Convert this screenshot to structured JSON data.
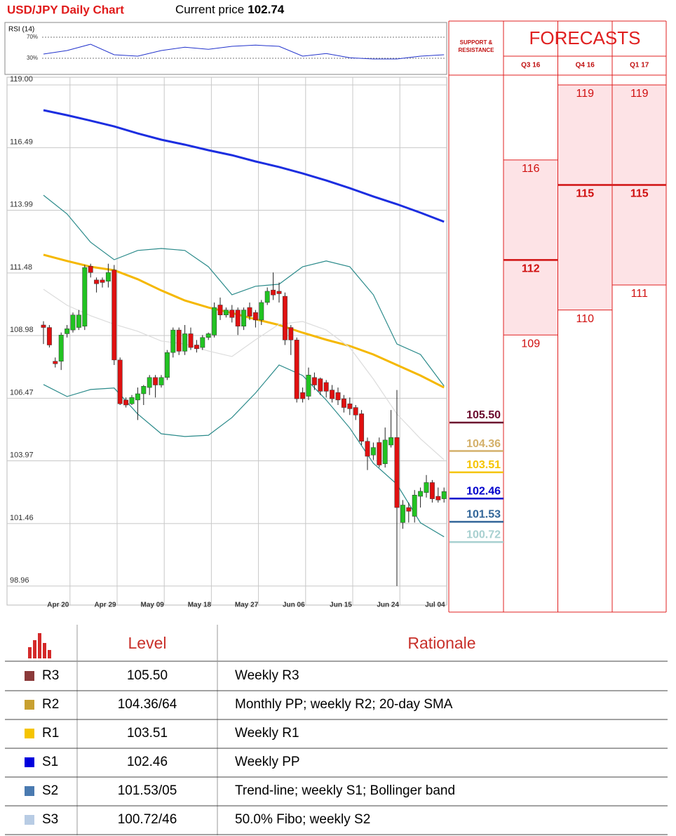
{
  "header": {
    "title": "USD/JPY Daily Chart",
    "price_label": "Current price",
    "price": 102.74
  },
  "chart_data": [
    {
      "type": "candlestick",
      "categories": [
        null,
        null,
        "Apr 20",
        null,
        null,
        null,
        null,
        null,
        null,
        null,
        "Apr 29",
        null,
        null,
        null,
        null,
        null,
        null,
        null,
        "May 09",
        null,
        null,
        null,
        null,
        null,
        null,
        null,
        "May 18",
        null,
        null,
        null,
        null,
        null,
        null,
        null,
        "May 27",
        null,
        null,
        null,
        null,
        null,
        null,
        null,
        "Jun 06",
        null,
        null,
        null,
        null,
        null,
        null,
        null,
        "Jun 15",
        null,
        null,
        null,
        null,
        null,
        null,
        null,
        "Jun 24",
        null,
        null,
        null,
        null,
        null,
        null,
        null,
        "Jul 04",
        null,
        null
      ],
      "open": [
        109.4,
        109.3,
        107.95,
        107.95,
        109.05,
        109.2,
        109.3,
        109.35,
        111.75,
        111.2,
        111.2,
        111.15,
        111.6,
        108.0,
        106.4,
        106.25,
        106.4,
        106.65,
        106.9,
        107.3,
        107.0,
        107.3,
        108.3,
        109.2,
        108.35,
        109.05,
        108.6,
        108.5,
        108.9,
        109.0,
        110.2,
        109.8,
        110.0,
        110.0,
        109.35,
        110.1,
        109.9,
        109.6,
        110.3,
        110.8,
        110.75,
        110.55,
        109.3,
        108.8,
        106.7,
        106.55,
        107.3,
        107.25,
        107.1,
        106.8,
        106.7,
        106.45,
        106.25,
        106.1,
        105.85,
        104.75,
        104.2,
        104.7,
        103.85,
        104.6,
        104.9,
        101.5,
        102.1,
        101.75,
        102.55,
        102.7,
        103.1,
        102.55,
        102.45
      ],
      "high": [
        109.55,
        109.4,
        108.1,
        109.1,
        109.4,
        109.9,
        110.0,
        111.8,
        111.85,
        111.3,
        111.3,
        111.85,
        111.8,
        108.1,
        106.5,
        106.6,
        106.9,
        107.0,
        107.4,
        107.4,
        107.4,
        108.4,
        109.3,
        109.3,
        109.4,
        109.3,
        108.8,
        109.0,
        109.1,
        110.3,
        110.5,
        110.1,
        110.2,
        110.1,
        110.1,
        110.3,
        110.0,
        110.4,
        110.9,
        111.5,
        111.1,
        110.7,
        109.4,
        108.9,
        106.9,
        107.7,
        107.5,
        107.3,
        107.2,
        107.0,
        106.9,
        106.6,
        106.5,
        106.2,
        106.0,
        104.9,
        104.7,
        104.9,
        105.3,
        106.0,
        106.8,
        102.4,
        102.3,
        102.8,
        102.9,
        103.4,
        103.2,
        102.9,
        102.9
      ],
      "low": [
        108.64,
        108.5,
        107.7,
        107.6,
        108.9,
        109.1,
        109.2,
        109.2,
        111.3,
        110.7,
        110.9,
        110.9,
        107.8,
        106.2,
        106.1,
        106.2,
        105.6,
        106.2,
        106.6,
        106.5,
        106.9,
        107.2,
        108.1,
        108.2,
        108.2,
        108.4,
        108.3,
        108.4,
        108.8,
        108.9,
        109.6,
        109.7,
        109.5,
        109.0,
        109.2,
        109.6,
        109.3,
        109.4,
        110.2,
        110.4,
        110.3,
        108.6,
        108.2,
        106.3,
        106.3,
        106.4,
        106.8,
        106.6,
        106.5,
        106.3,
        106.2,
        105.9,
        105.8,
        105.6,
        104.6,
        103.6,
        104.0,
        103.7,
        103.7,
        104.5,
        98.96,
        101.25,
        101.5,
        101.5,
        102.1,
        102.5,
        102.3,
        102.3,
        102.3
      ],
      "close": [
        109.3,
        108.6,
        107.85,
        109.0,
        109.25,
        109.8,
        109.8,
        111.7,
        111.5,
        111.05,
        111.1,
        111.5,
        108.0,
        106.25,
        106.2,
        106.5,
        106.65,
        106.95,
        107.3,
        107.0,
        107.3,
        108.3,
        109.2,
        108.35,
        109.05,
        108.5,
        108.45,
        108.9,
        109.05,
        110.1,
        109.8,
        110.0,
        109.7,
        109.35,
        110.0,
        109.75,
        109.6,
        110.3,
        110.75,
        110.6,
        110.65,
        108.8,
        108.8,
        106.45,
        106.45,
        107.4,
        107.0,
        106.75,
        106.75,
        106.45,
        106.4,
        106.1,
        106.05,
        105.8,
        104.75,
        104.15,
        104.5,
        103.8,
        104.8,
        104.9,
        102.1,
        102.2,
        101.95,
        102.6,
        102.75,
        103.1,
        102.45,
        102.4,
        102.74
      ],
      "up_color": "#22c322",
      "down_color": "#e01010",
      "series": [
        {
          "color": "#1c2ee0",
          "x": [
            0,
            4,
            8,
            12,
            16,
            20,
            24,
            28,
            32,
            36,
            40,
            44,
            48,
            52,
            56,
            60,
            64,
            68
          ],
          "values": [
            117.99,
            117.79,
            117.57,
            117.34,
            117.06,
            116.81,
            116.61,
            116.39,
            116.19,
            115.94,
            115.72,
            115.46,
            115.18,
            114.87,
            114.54,
            114.23,
            113.89,
            113.53
          ]
        },
        {
          "color": "#f5b800",
          "x": [
            0,
            4,
            8,
            12,
            16,
            20,
            24,
            28,
            32,
            36,
            40,
            44,
            48,
            52,
            56,
            60,
            64,
            68
          ],
          "values": [
            112.21,
            111.96,
            111.73,
            111.59,
            111.23,
            110.78,
            110.38,
            110.1,
            109.88,
            109.63,
            109.4,
            109.09,
            108.81,
            108.56,
            108.22,
            107.8,
            107.38,
            106.9
          ]
        },
        {
          "color": "#2a8a8a",
          "x": [
            0,
            4,
            8,
            12,
            16,
            20,
            24,
            28,
            32,
            36,
            40,
            44,
            48,
            52,
            56,
            60,
            64,
            68
          ],
          "values": [
            114.59,
            113.84,
            112.71,
            112.01,
            112.38,
            112.46,
            112.38,
            111.73,
            110.61,
            110.95,
            111.03,
            111.73,
            111.96,
            111.73,
            110.61,
            108.64,
            108.22,
            106.96
          ]
        },
        {
          "color": "#2a8a8a",
          "x": [
            0,
            4,
            8,
            12,
            16,
            20,
            24,
            28,
            32,
            36,
            40,
            44,
            48,
            52,
            56,
            60,
            64,
            68
          ],
          "values": [
            107.02,
            106.54,
            106.82,
            106.88,
            105.84,
            105.05,
            104.94,
            104.99,
            105.7,
            106.68,
            107.8,
            107.38,
            106.4,
            105.28,
            103.87,
            103.03,
            101.49,
            100.93
          ]
        },
        {
          "color": "#dcdcdc",
          "x": [
            0,
            4,
            8,
            12,
            16,
            20,
            24,
            28,
            32,
            36,
            40,
            44,
            48,
            52,
            56,
            60,
            64,
            68
          ],
          "values": [
            110.83,
            110.19,
            109.77,
            109.43,
            109.15,
            108.76,
            108.64,
            108.36,
            108.14,
            108.81,
            109.43,
            109.54,
            109.2,
            108.5,
            107.24,
            105.84,
            104.85,
            104.01
          ]
        }
      ],
      "ylim": [
        98.2,
        119.0
      ],
      "yticks": [
        {
          "value": 119,
          "label": "119.00"
        },
        116.49,
        113.99,
        111.48,
        108.98,
        106.47,
        103.97,
        101.46,
        98.96
      ],
      "grid": true,
      "levels": {
        "title": "SUPPORT & RESISTANCE",
        "values": [
          105.5,
          104.36,
          103.51,
          102.46,
          101.53,
          100.72
        ],
        "value_labels": [
          "105.50",
          "104.36",
          "103.51",
          "102.46",
          "101.53",
          "100.72"
        ],
        "colors": [
          "#6b0a2e",
          "#d4b06a",
          "#f5c400",
          "#0000cc",
          "#336699",
          "#a8d0d0"
        ]
      },
      "forecasts": {
        "title": "FORECASTS",
        "periods": [
          {
            "label": "Q3 16",
            "high": 116,
            "mid": 112,
            "low": 109
          },
          {
            "label": "Q4 16",
            "high": 119,
            "mid": 115,
            "low": 110
          },
          {
            "label": "Q1 17",
            "high": 119,
            "mid": 115,
            "low": 111
          }
        ]
      }
    },
    {
      "type": "line",
      "title": "RSI (14)",
      "series": [
        {
          "color": "#2233cc",
          "x": [
            0,
            4,
            8,
            12,
            16,
            20,
            24,
            28,
            32,
            36,
            40,
            44,
            48,
            52,
            56,
            60,
            64,
            68
          ],
          "values": [
            38,
            44.7,
            56.7,
            36.7,
            34,
            44.7,
            51,
            47,
            52.7,
            55,
            52.7,
            34,
            39,
            31,
            28.7,
            28.7,
            34,
            36.7
          ]
        }
      ],
      "ylim": [
        0,
        100
      ],
      "yticks": [
        {
          "value": 70,
          "label": "70%"
        },
        {
          "value": 30,
          "label": "30%"
        }
      ]
    }
  ],
  "table": {
    "header": [
      "Level",
      "Rationale"
    ],
    "rows": [
      {
        "name": "R3",
        "color": "#8b3a3a",
        "level": "105.50",
        "rationale": "Weekly R3"
      },
      {
        "name": "R2",
        "color": "#c8a030",
        "level": "104.36/64",
        "rationale": "Monthly PP; weekly R2; 20-day SMA"
      },
      {
        "name": "R1",
        "color": "#f5c400",
        "level": "103.51",
        "rationale": "Weekly R1"
      },
      {
        "name": "S1",
        "color": "#0000dd",
        "level": "102.46",
        "rationale": "Weekly PP"
      },
      {
        "name": "S2",
        "color": "#4a7ab0",
        "level": "101.53/05",
        "rationale": "Trend-line; weekly S1; Bollinger band"
      },
      {
        "name": "S3",
        "color": "#b8cce4",
        "level": "100.72/46",
        "rationale": "50.0% Fibo; weekly S2"
      }
    ]
  }
}
